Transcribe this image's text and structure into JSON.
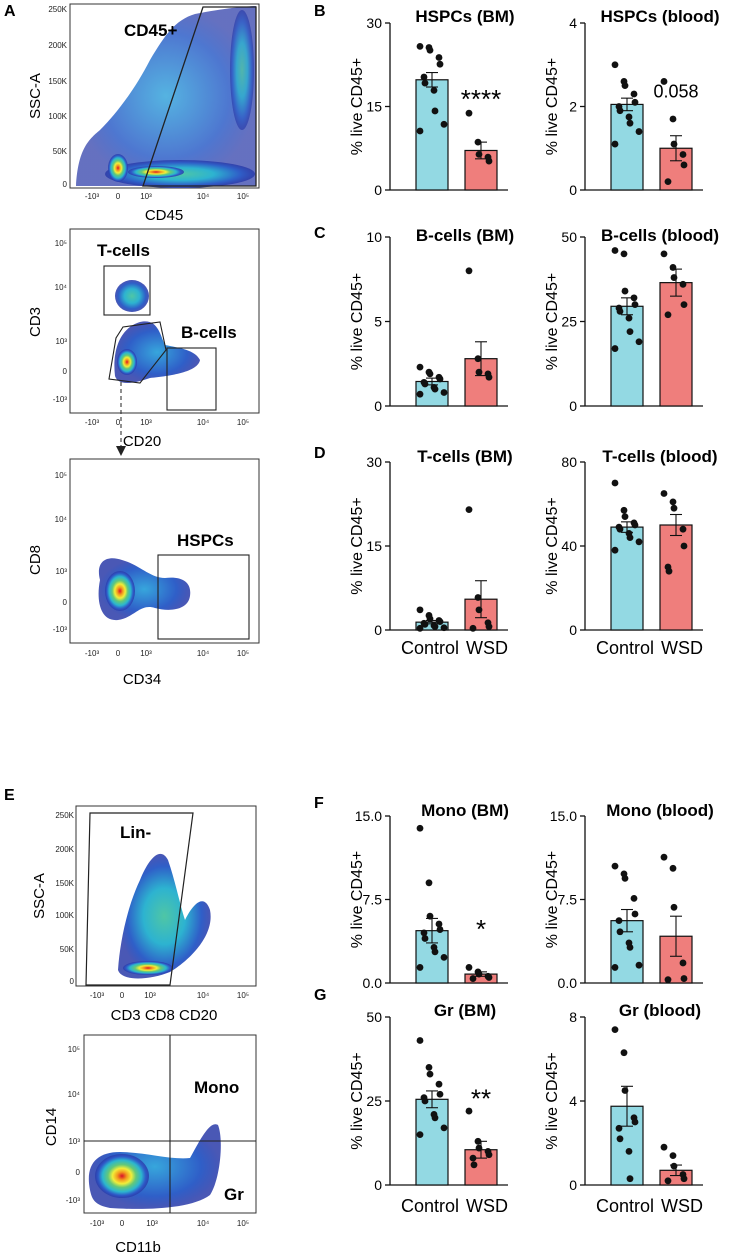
{
  "panel_labels": {
    "A": "A",
    "B": "B",
    "C": "C",
    "D": "D",
    "E": "E",
    "F": "F",
    "G": "G"
  },
  "flow": {
    "p1": {
      "ylabel": "SSC-A",
      "xlabel": "CD45",
      "gate": "CD45+",
      "yticks": [
        "250K",
        "200K",
        "150K",
        "100K",
        "50K",
        "0"
      ],
      "xticks": [
        "-10³",
        "0",
        "10³",
        "10⁴",
        "10⁵"
      ]
    },
    "p2": {
      "ylabel": "CD3",
      "xlabel": "CD20",
      "gate1": "T-cells",
      "gate2": "B-cells",
      "yticks": [
        "10⁵",
        "10⁴",
        "10³",
        "0",
        "-10³"
      ],
      "xticks": [
        "-10³",
        "0",
        "10³",
        "10⁴",
        "10⁵"
      ]
    },
    "p3": {
      "ylabel": "CD8",
      "xlabel": "CD34",
      "gate": "HSPCs",
      "yticks": [
        "10⁵",
        "10⁴",
        "10³",
        "0",
        "-10³"
      ],
      "xticks": [
        "-10³",
        "0",
        "10³",
        "10⁴",
        "10⁵"
      ]
    },
    "p4": {
      "ylabel": "SSC-A",
      "xlabel": "CD3 CD8 CD20",
      "gate": "Lin-",
      "yticks": [
        "250K",
        "200K",
        "150K",
        "100K",
        "50K",
        "0"
      ],
      "xticks": [
        "-10³",
        "0",
        "10³",
        "10⁴",
        "10⁵"
      ]
    },
    "p5": {
      "ylabel": "CD14",
      "xlabel": "CD11b",
      "gate1": "Mono",
      "gate2": "Gr",
      "yticks": [
        "10⁵",
        "10⁴",
        "10³",
        "0",
        "-10³"
      ],
      "xticks": [
        "-10³",
        "0",
        "10³",
        "10⁴",
        "10⁵"
      ]
    }
  },
  "colors": {
    "control": "#93d9e3",
    "wsd": "#ef7e7c"
  },
  "chart_data": [
    {
      "id": "hspc-bm",
      "type": "bar",
      "title": "HSPCs (BM)",
      "ylabel": "% live CD45+",
      "ylim": [
        0,
        30
      ],
      "yticks": [
        "0",
        "15",
        "30"
      ],
      "categories": [
        "Control",
        "WSD"
      ],
      "values": [
        19.8,
        7.1
      ],
      "sem": [
        1.3,
        1.5
      ],
      "annotation": "****",
      "points": [
        [
          25.8,
          25.6,
          25.1,
          23.8,
          22.6,
          20.3,
          19.2,
          17.9,
          14.2,
          11.8,
          10.6
        ],
        [
          13.8,
          8.6,
          6.4,
          5.9,
          5.2
        ]
      ]
    },
    {
      "id": "hspc-blood",
      "type": "bar",
      "title": "HSPCs (blood)",
      "ylabel": "% live CD45+",
      "ylim": [
        0,
        4
      ],
      "yticks": [
        "0",
        "2",
        "4"
      ],
      "categories": [
        "Control",
        "WSD"
      ],
      "values": [
        2.05,
        1.0
      ],
      "sem": [
        0.15,
        0.3
      ],
      "annotation": "0.058",
      "points": [
        [
          3.0,
          2.6,
          2.5,
          2.3,
          2.1,
          2.0,
          1.9,
          1.75,
          1.6,
          1.4,
          1.1
        ],
        [
          2.6,
          1.7,
          1.1,
          0.85,
          0.6,
          0.2
        ]
      ]
    },
    {
      "id": "bcell-bm",
      "type": "bar",
      "title": "B-cells (BM)",
      "ylabel": "% live CD45+",
      "ylim": [
        0,
        10
      ],
      "yticks": [
        "0",
        "5",
        "10"
      ],
      "categories": [
        "Control",
        "WSD"
      ],
      "values": [
        1.45,
        2.8
      ],
      "sem": [
        0.2,
        1.0
      ],
      "annotation": "",
      "points": [
        [
          2.3,
          2.0,
          1.9,
          1.7,
          1.6,
          1.4,
          1.3,
          1.1,
          1.0,
          0.8,
          0.7
        ],
        [
          8.0,
          2.8,
          2.0,
          1.9,
          1.7
        ]
      ]
    },
    {
      "id": "bcell-blood",
      "type": "bar",
      "title": "B-cells (blood)",
      "ylabel": "% live CD45+",
      "ylim": [
        0,
        50
      ],
      "yticks": [
        "0",
        "25",
        "50"
      ],
      "categories": [
        "Control",
        "WSD"
      ],
      "values": [
        29.5,
        36.5
      ],
      "sem": [
        2.5,
        4.0
      ],
      "annotation": "",
      "points": [
        [
          46,
          45,
          34,
          32,
          30,
          29,
          28,
          26,
          22,
          19,
          17
        ],
        [
          45,
          41,
          38,
          36,
          30,
          27
        ]
      ]
    },
    {
      "id": "tcell-bm",
      "type": "bar",
      "title": "T-cells (BM)",
      "ylabel": "% live CD45+",
      "ylim": [
        0,
        30
      ],
      "yticks": [
        "0",
        "15",
        "30"
      ],
      "categories": [
        "Control",
        "WSD"
      ],
      "values": [
        1.4,
        5.5
      ],
      "sem": [
        0.3,
        3.3
      ],
      "annotation": "",
      "points": [
        [
          3.6,
          2.6,
          2.0,
          1.7,
          1.5,
          1.2,
          1.0,
          0.8,
          0.6,
          0.4,
          0.3
        ],
        [
          21.5,
          5.8,
          3.6,
          1.3,
          0.6,
          0.3
        ]
      ]
    },
    {
      "id": "tcell-blood",
      "type": "bar",
      "title": "T-cells (blood)",
      "ylabel": "% live CD45+",
      "ylim": [
        0,
        80
      ],
      "yticks": [
        "0",
        "40",
        "80"
      ],
      "categories": [
        "Control",
        "WSD"
      ],
      "values": [
        49,
        50
      ],
      "sem": [
        2.5,
        5
      ],
      "annotation": "",
      "points": [
        [
          70,
          57,
          54,
          51,
          50,
          49,
          48,
          46,
          44,
          42,
          38
        ],
        [
          65,
          61,
          58,
          48,
          40,
          30,
          28
        ]
      ]
    },
    {
      "id": "mono-bm",
      "type": "bar",
      "title": "Mono (BM)",
      "ylabel": "% live CD45+",
      "ylim": [
        0,
        15
      ],
      "yticks": [
        "0.0",
        "7.5",
        "15.0"
      ],
      "categories": [
        "Control",
        "WSD"
      ],
      "values": [
        4.7,
        0.8
      ],
      "sem": [
        1.1,
        0.2
      ],
      "annotation": "*",
      "points": [
        [
          13.9,
          9.0,
          6.0,
          5.3,
          4.8,
          4.5,
          4.0,
          3.2,
          2.8,
          2.3,
          1.4
        ],
        [
          1.4,
          1.0,
          0.8,
          0.6,
          0.5,
          0.4
        ]
      ]
    },
    {
      "id": "mono-blood",
      "type": "bar",
      "title": "Mono (blood)",
      "ylabel": "% live CD45+",
      "ylim": [
        0,
        15
      ],
      "yticks": [
        "0.0",
        "7.5",
        "15.0"
      ],
      "categories": [
        "Control",
        "WSD"
      ],
      "values": [
        5.6,
        4.2
      ],
      "sem": [
        1.0,
        1.8
      ],
      "annotation": "",
      "points": [
        [
          10.5,
          9.8,
          9.4,
          7.6,
          6.2,
          5.6,
          4.6,
          3.6,
          3.2,
          1.6,
          1.4
        ],
        [
          11.3,
          10.3,
          6.8,
          1.8,
          0.4,
          0.3
        ]
      ]
    },
    {
      "id": "gr-bm",
      "type": "bar",
      "title": "Gr (BM)",
      "ylabel": "% live CD45+",
      "ylim": [
        0,
        50
      ],
      "yticks": [
        "0",
        "25",
        "50"
      ],
      "categories": [
        "Control",
        "WSD"
      ],
      "values": [
        25.5,
        10.5
      ],
      "sem": [
        2.5,
        2.5
      ],
      "annotation": "**",
      "points": [
        [
          43,
          35,
          33,
          30,
          27,
          26,
          25,
          21,
          20,
          17,
          15
        ],
        [
          22,
          13,
          11,
          10,
          9,
          8,
          6
        ]
      ]
    },
    {
      "id": "gr-blood",
      "type": "bar",
      "title": "Gr (blood)",
      "ylabel": "% live CD45+",
      "ylim": [
        0,
        8
      ],
      "yticks": [
        "0",
        "4",
        "8"
      ],
      "categories": [
        "Control",
        "WSD"
      ],
      "values": [
        3.75,
        0.7
      ],
      "sem": [
        0.95,
        0.25
      ],
      "annotation": "",
      "points": [
        [
          7.4,
          6.3,
          4.5,
          3.2,
          3.0,
          2.7,
          2.2,
          1.6,
          0.3
        ],
        [
          1.8,
          1.4,
          0.9,
          0.5,
          0.3,
          0.2
        ]
      ]
    }
  ]
}
